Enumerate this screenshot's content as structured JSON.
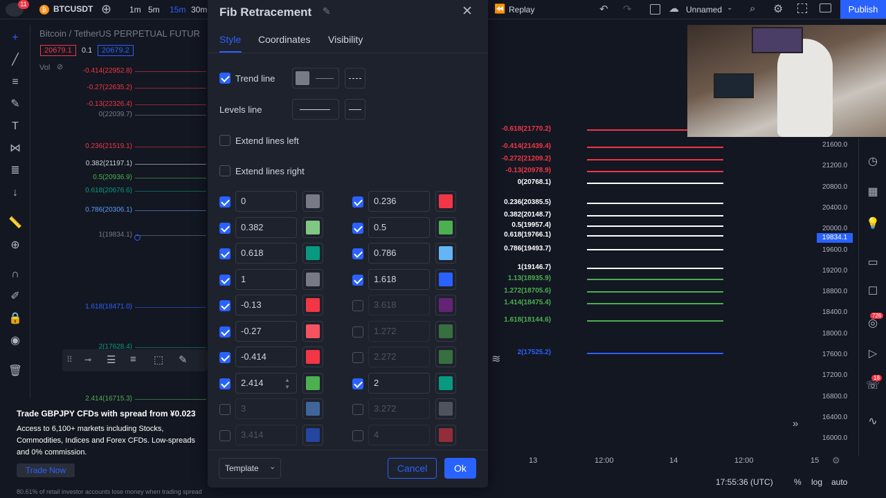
{
  "header": {
    "notif_count": "11",
    "symbol": "BTCUSDT",
    "timeframes": [
      "1m",
      "5m",
      "15m",
      "30m"
    ],
    "active_tf": "15m",
    "replay": "Replay",
    "layout": "Unnamed",
    "publish": "Publish"
  },
  "chart": {
    "title": "Bitcoin / TetherUS PERPETUAL FUTUR",
    "bid": "20679.1",
    "spread": "0.1",
    "ask": "20679.2",
    "vol": "Vol",
    "left_fib": [
      {
        "label": "-0.414(22952.8)",
        "color": "#f23645"
      },
      {
        "label": "-0.27(22635.2)",
        "color": "#f23645"
      },
      {
        "label": "-0.13(22326.4)",
        "color": "#f23645"
      },
      {
        "label": "0(22039.7)",
        "color": "#787b86"
      },
      {
        "label": "0.236(21519.1)",
        "color": "#f23645"
      },
      {
        "label": "0.382(21197.1)",
        "color": "#d1d4dc"
      },
      {
        "label": "0.5(20936.9)",
        "color": "#4caf50"
      },
      {
        "label": "0.618(20676.6)",
        "color": "#089981"
      },
      {
        "label": "0.786(20306.1)",
        "color": "#5b9cf6"
      },
      {
        "label": "1(19834.1)",
        "color": "#787b86"
      },
      {
        "label": "1.618(18471.0)",
        "color": "#2962ff"
      },
      {
        "label": "2(17628.4)",
        "color": "#089981"
      },
      {
        "label": "2.414(16715.3)",
        "color": "#4caf50"
      }
    ],
    "right_fib": [
      {
        "label": "-0.618(21770.2)",
        "color": "#f23645"
      },
      {
        "label": "-0.414(21439.4)",
        "color": "#f23645"
      },
      {
        "label": "-0.272(21209.2)",
        "color": "#f23645"
      },
      {
        "label": "-0.13(20978.9)",
        "color": "#f23645"
      },
      {
        "label": "0(20768.1)",
        "color": "#ffffff"
      },
      {
        "label": "0.236(20385.5)",
        "color": "#ffffff"
      },
      {
        "label": "0.382(20148.7)",
        "color": "#ffffff"
      },
      {
        "label": "0.5(19957.4)",
        "color": "#ffffff"
      },
      {
        "label": "0.618(19766.1)",
        "color": "#ffffff"
      },
      {
        "label": "0.786(19493.7)",
        "color": "#ffffff"
      },
      {
        "label": "1(19146.7)",
        "color": "#ffffff"
      },
      {
        "label": "1.13(18935.9)",
        "color": "#4caf50"
      },
      {
        "label": "1.272(18705.6)",
        "color": "#4caf50"
      },
      {
        "label": "1.414(18475.4)",
        "color": "#4caf50"
      },
      {
        "label": "1.618(18144.6)",
        "color": "#4caf50"
      },
      {
        "label": "2(17525.2)",
        "color": "#2962ff"
      }
    ],
    "price_axis": [
      "21600.0",
      "21200.0",
      "20800.0",
      "20400.0",
      "20000.0",
      "19600.0",
      "19200.0",
      "18800.0",
      "18400.0",
      "18000.0",
      "17600.0",
      "17200.0",
      "16800.0",
      "16400.0",
      "16000.0"
    ],
    "current_price": "19834.1",
    "time_axis": [
      "13",
      "12:00",
      "14",
      "12:00",
      "15"
    ],
    "clock": "17:55:36 (UTC)",
    "pct": "%",
    "log": "log",
    "auto": "auto"
  },
  "dialog": {
    "title": "Fib Retracement",
    "tabs": [
      "Style",
      "Coordinates",
      "Visibility"
    ],
    "trend_line": "Trend line",
    "levels_line": "Levels line",
    "extend_left": "Extend lines left",
    "extend_right": "Extend lines right",
    "levels_left": [
      {
        "value": "0",
        "on": true,
        "color": "#787b86"
      },
      {
        "value": "0.382",
        "on": true,
        "color": "#81c784"
      },
      {
        "value": "0.618",
        "on": true,
        "color": "#089981"
      },
      {
        "value": "1",
        "on": true,
        "color": "#787b86"
      },
      {
        "value": "-0.13",
        "on": true,
        "color": "#f23645"
      },
      {
        "value": "-0.27",
        "on": true,
        "color": "#f7525f"
      },
      {
        "value": "-0.414",
        "on": true,
        "color": "#f23645"
      },
      {
        "value": "2.414",
        "on": true,
        "color": "#4caf50"
      },
      {
        "value": "3",
        "on": false,
        "color": "#5b9cf6"
      },
      {
        "value": "3.414",
        "on": false,
        "color": "#2962ff"
      }
    ],
    "levels_right": [
      {
        "value": "0.236",
        "on": true,
        "color": "#f23645"
      },
      {
        "value": "0.5",
        "on": true,
        "color": "#4caf50"
      },
      {
        "value": "0.786",
        "on": true,
        "color": "#64b5f6"
      },
      {
        "value": "1.618",
        "on": true,
        "color": "#2962ff"
      },
      {
        "value": "3.618",
        "on": false,
        "color": "#9c27b0"
      },
      {
        "value": "1.272",
        "on": false,
        "color": "#4caf50"
      },
      {
        "value": "2.272",
        "on": false,
        "color": "#4caf50"
      },
      {
        "value": "2",
        "on": true,
        "color": "#089981"
      },
      {
        "value": "3.272",
        "on": false,
        "color": "#787b86"
      },
      {
        "value": "4",
        "on": false,
        "color": "#f23645"
      }
    ],
    "template": "Template",
    "cancel": "Cancel",
    "ok": "Ok"
  },
  "ad": {
    "headline": "Trade GBPJPY CFDs with spread from ¥0.023",
    "body": "Access to 6,100+ markets including Stocks, Commodities, Indices and Forex CFDs. Low-spreads and 0% commission.",
    "cta": "Trade Now",
    "disclaimer": "80.61% of retail investor accounts lose money when trading spread"
  },
  "right_badges": [
    "726",
    "18"
  ]
}
